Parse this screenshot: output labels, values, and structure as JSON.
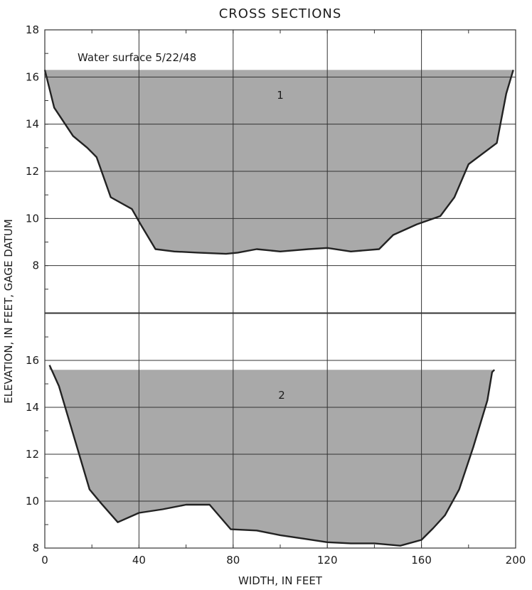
{
  "chart_data": {
    "type": "area",
    "title": "CROSS SECTIONS",
    "xlabel": "WIDTH, IN FEET",
    "ylabel": "ELEVATION, IN FEET, GAGE DATUM",
    "xlim": [
      0,
      200
    ],
    "x_ticks": [
      "0",
      "40",
      "80",
      "120",
      "160",
      "200"
    ],
    "grid": true,
    "colors": {
      "fill": "#a9a9a9",
      "outline": "#222222",
      "grid": "#333333",
      "text": "#1c1c1c"
    },
    "panels": [
      {
        "label": "1",
        "annotation": "Water surface 5/22/48",
        "ylim": [
          6,
          18
        ],
        "y_ticks": [
          "8",
          "10",
          "12",
          "14",
          "16",
          "18"
        ],
        "water_surface": 16.3,
        "x": [
          0,
          4,
          12,
          18,
          22,
          28,
          37,
          41,
          47,
          55,
          65,
          77,
          82,
          90,
          100,
          112,
          120,
          130,
          142,
          148,
          158,
          168,
          174,
          180,
          192,
          196,
          199
        ],
        "y": [
          16.3,
          14.7,
          13.5,
          13.0,
          12.6,
          10.9,
          10.4,
          9.7,
          8.7,
          8.6,
          8.55,
          8.5,
          8.55,
          8.7,
          8.6,
          8.7,
          8.75,
          8.6,
          8.7,
          9.3,
          9.75,
          10.1,
          10.9,
          12.3,
          13.2,
          15.3,
          16.3
        ]
      },
      {
        "label": "2",
        "ylim": [
          8,
          18
        ],
        "y_ticks": [
          "8",
          "10",
          "12",
          "14",
          "16"
        ],
        "water_surface": 15.6,
        "x": [
          2,
          6,
          14,
          19,
          24,
          31,
          40,
          50,
          60,
          70,
          79,
          90,
          100,
          110,
          120,
          130,
          140,
          151,
          160,
          165,
          170,
          176,
          182,
          188,
          190,
          191
        ],
        "y": [
          15.8,
          14.9,
          12.2,
          10.5,
          9.9,
          9.1,
          9.5,
          9.65,
          9.85,
          9.85,
          8.8,
          8.75,
          8.55,
          8.4,
          8.25,
          8.2,
          8.2,
          8.1,
          8.35,
          8.85,
          9.4,
          10.5,
          12.3,
          14.3,
          15.5,
          15.6
        ]
      }
    ]
  }
}
